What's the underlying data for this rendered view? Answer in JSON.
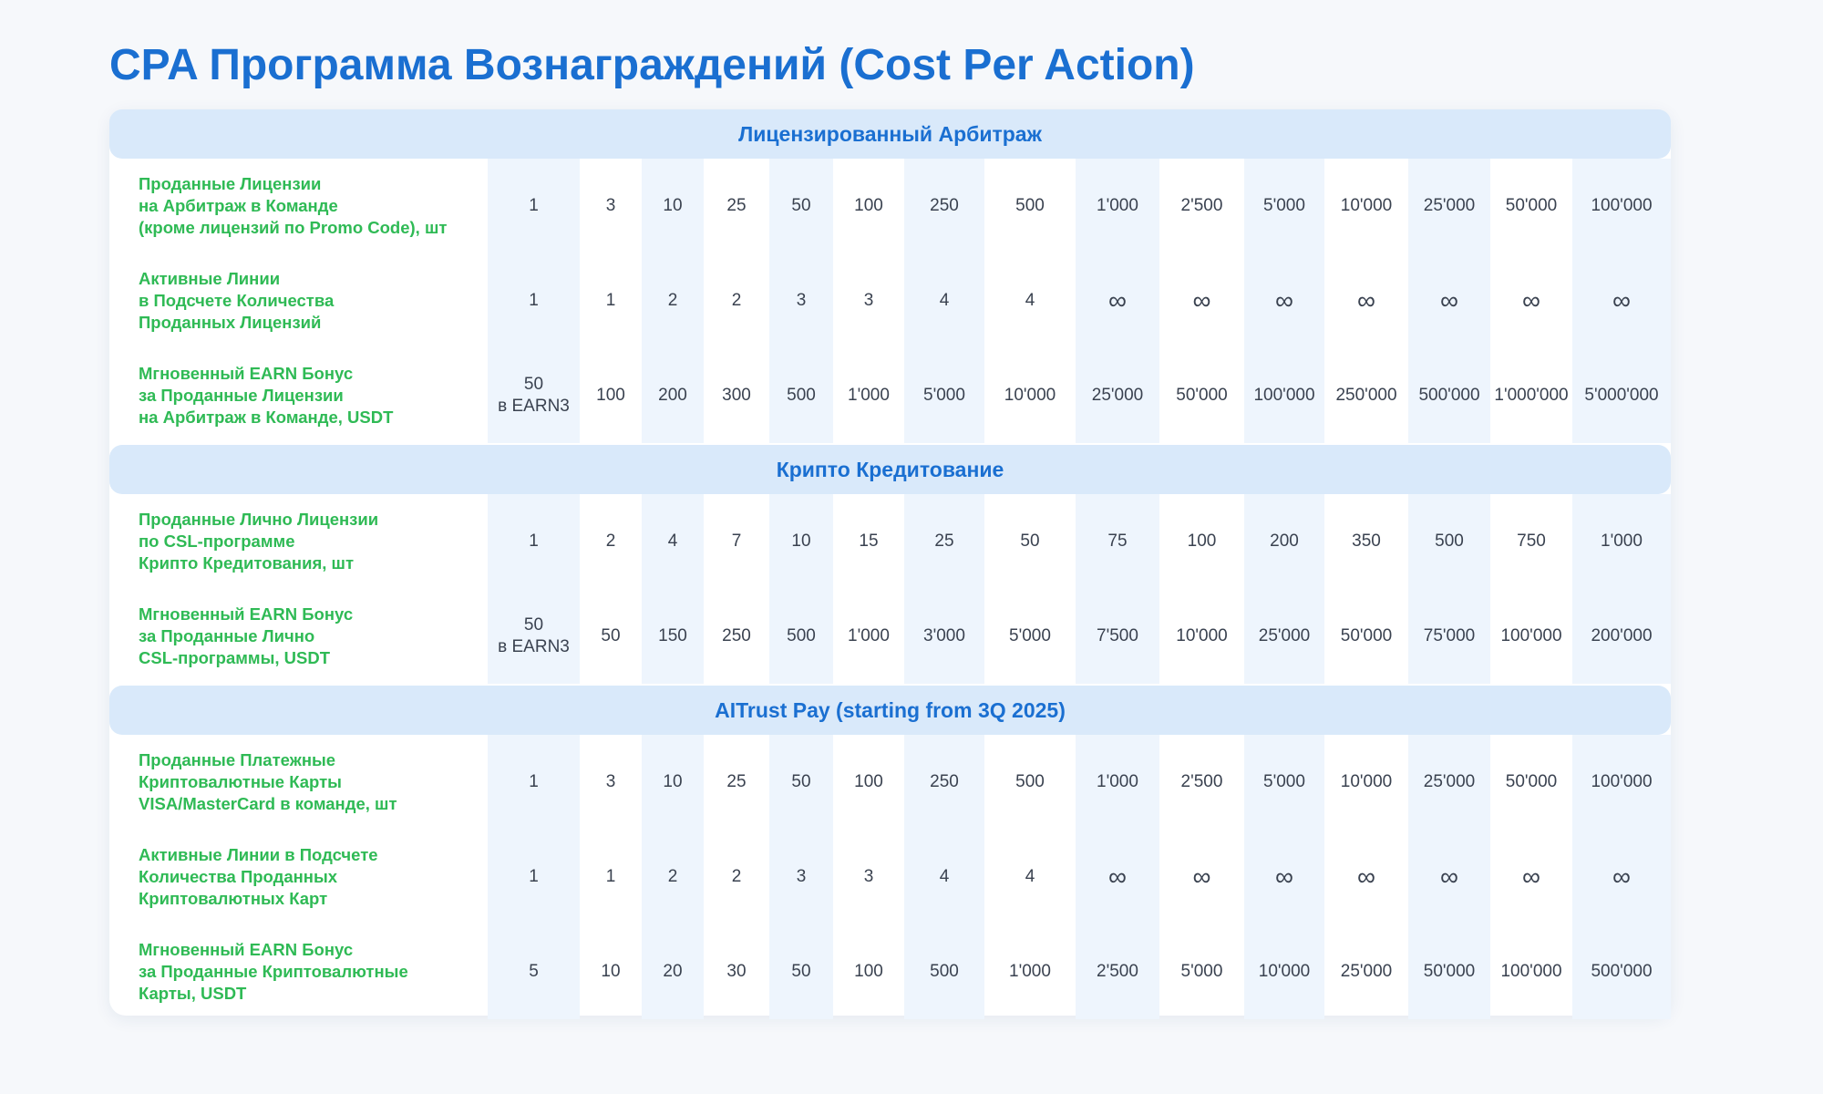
{
  "title": "CPA Программа Вознаграждений (Cost Per Action)",
  "sections": [
    {
      "title": "Лицензированный Арбитраж",
      "rows": [
        {
          "label": "Проданные Лицензии\nна Арбитраж в Команде\n(кроме лицензий по Promo Code), шт",
          "values": [
            "1",
            "3",
            "10",
            "25",
            "50",
            "100",
            "250",
            "500",
            "1'000",
            "2'500",
            "5'000",
            "10'000",
            "25'000",
            "50'000",
            "100'000"
          ]
        },
        {
          "label": "Активные Линии\nв Подсчете Количества\nПроданных Лицензий",
          "values": [
            "1",
            "1",
            "2",
            "2",
            "3",
            "3",
            "4",
            "4",
            "∞",
            "∞",
            "∞",
            "∞",
            "∞",
            "∞",
            "∞"
          ]
        },
        {
          "label": "Мгновенный EARN Бонус\nза Проданные Лицензии\nна Арбитраж в Команде, USDT",
          "values": [
            "50\nв EARN3",
            "100",
            "200",
            "300",
            "500",
            "1'000",
            "5'000",
            "10'000",
            "25'000",
            "50'000",
            "100'000",
            "250'000",
            "500'000",
            "1'000'000",
            "5'000'000"
          ]
        }
      ]
    },
    {
      "title": "Крипто Кредитование",
      "rows": [
        {
          "label": "Проданные Лично Лицензии\nпо CSL-программе\nКрипто Кредитования, шт",
          "values": [
            "1",
            "2",
            "4",
            "7",
            "10",
            "15",
            "25",
            "50",
            "75",
            "100",
            "200",
            "350",
            "500",
            "750",
            "1'000"
          ]
        },
        {
          "label": "Мгновенный EARN Бонус\nза Проданные Лично\nCSL-программы, USDT",
          "values": [
            "50\nв EARN3",
            "50",
            "150",
            "250",
            "500",
            "1'000",
            "3'000",
            "5'000",
            "7'500",
            "10'000",
            "25'000",
            "50'000",
            "75'000",
            "100'000",
            "200'000"
          ]
        }
      ]
    },
    {
      "title": "AITrust Pay (starting from 3Q 2025)",
      "rows": [
        {
          "label": "Проданные Платежные\nКриптовалютные Карты\nVISA/MasterCard в команде, шт",
          "values": [
            "1",
            "3",
            "10",
            "25",
            "50",
            "100",
            "250",
            "500",
            "1'000",
            "2'500",
            "5'000",
            "10'000",
            "25'000",
            "50'000",
            "100'000"
          ]
        },
        {
          "label": "Активные Линии в Подсчете\nКоличества Проданных\nКриптовалютных Карт",
          "values": [
            "1",
            "1",
            "2",
            "2",
            "3",
            "3",
            "4",
            "4",
            "∞",
            "∞",
            "∞",
            "∞",
            "∞",
            "∞",
            "∞"
          ]
        },
        {
          "label": "Мгновенный EARN Бонус\nза Проданные Криптовалютные\nКарты, USDT",
          "values": [
            "5",
            "10",
            "20",
            "30",
            "50",
            "100",
            "500",
            "1'000",
            "2'500",
            "5'000",
            "10'000",
            "25'000",
            "50'000",
            "100'000",
            "500'000"
          ]
        }
      ]
    }
  ]
}
